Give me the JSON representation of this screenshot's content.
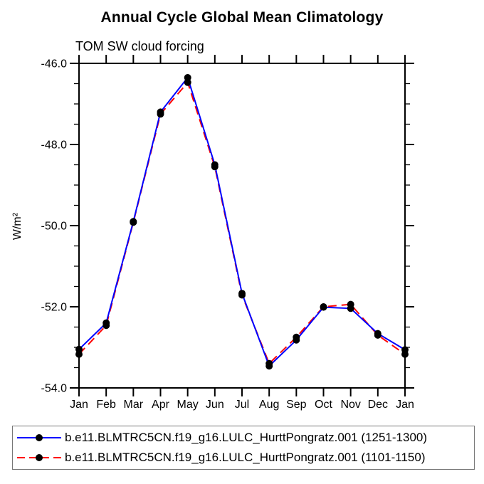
{
  "page": {
    "background": "#ffffff",
    "text_color": "#000000"
  },
  "chart_data": {
    "type": "line",
    "title": "Annual Cycle Global Mean Climatology",
    "subtitle": "TOM SW cloud forcing",
    "xlabel": "",
    "ylabel": "W/m²",
    "x_categories": [
      "Jan",
      "Feb",
      "Mar",
      "Apr",
      "May",
      "Jun",
      "Jul",
      "Aug",
      "Sep",
      "Oct",
      "Nov",
      "Dec",
      "Jan"
    ],
    "ylim": [
      -54.0,
      -46.0
    ],
    "ytick_labels": [
      "-46.0",
      "-48.0",
      "-50.0",
      "-52.0",
      "-54.0"
    ],
    "ytick_values": [
      -46,
      -48,
      -50,
      -52,
      -54
    ],
    "y_minor_tick_step": 0.5,
    "grid": false,
    "legend_position": "bottom-box",
    "axis_color": "#000000",
    "marker_color": "#000000",
    "series": [
      {
        "name": "b.e11.BLMTRC5CN.f19_g16.LULC_HurttPongratz.001 (1251-1300)",
        "color": "#0000ff",
        "line_style": "solid",
        "marker": "filled-circle",
        "values": [
          -53.05,
          -52.4,
          -49.9,
          -47.2,
          -46.35,
          -48.5,
          -51.67,
          -53.46,
          -52.82,
          -52.01,
          -52.04,
          -52.66,
          -53.06
        ]
      },
      {
        "name": "b.e11.BLMTRC5CN.f19_g16.LULC_HurttPongratz.001 (1101-1150)",
        "color": "#ff0000",
        "line_style": "dashed",
        "marker": "filled-circle",
        "values": [
          -53.17,
          -52.46,
          -49.92,
          -47.25,
          -46.47,
          -48.55,
          -51.71,
          -53.4,
          -52.75,
          -52.0,
          -51.94,
          -52.7,
          -53.17
        ]
      }
    ]
  }
}
